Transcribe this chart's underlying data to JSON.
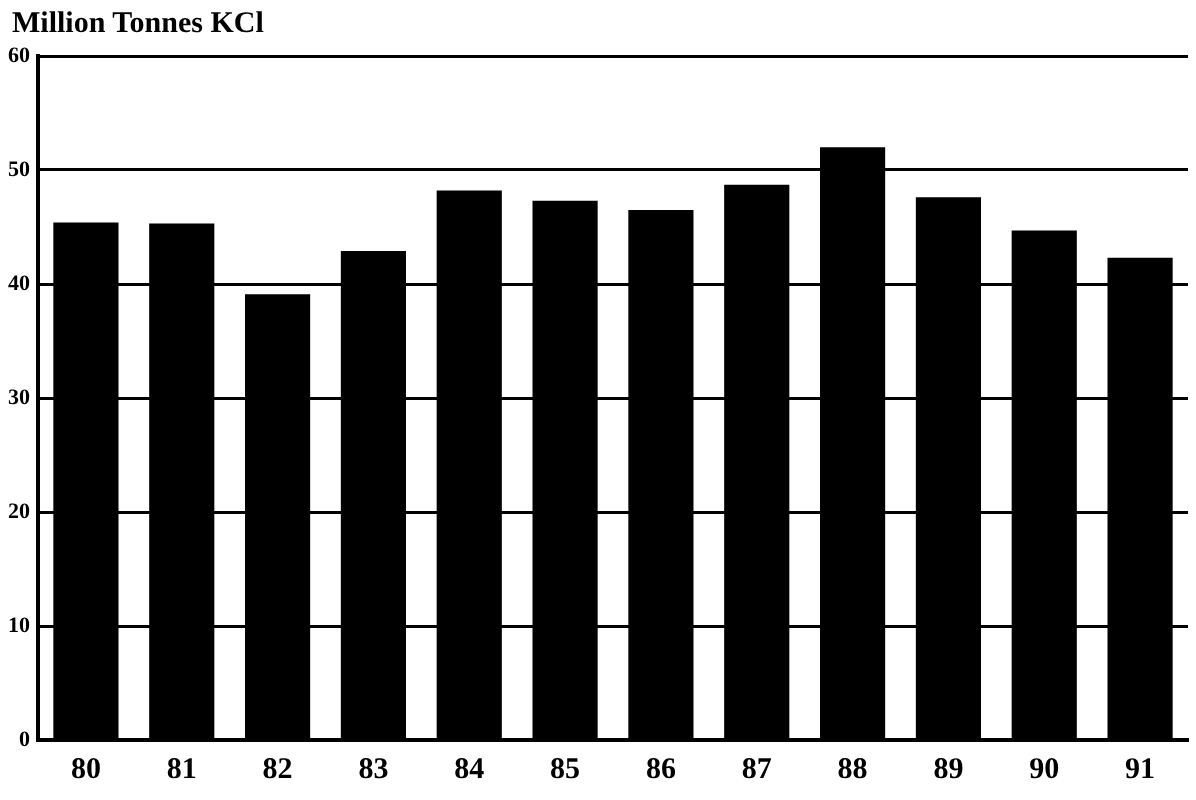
{
  "chart_data": {
    "type": "bar",
    "title": "Million Tonnes KCl",
    "categories": [
      "80",
      "81",
      "82",
      "83",
      "84",
      "85",
      "86",
      "87",
      "88",
      "89",
      "90",
      "91"
    ],
    "values": [
      45.4,
      45.3,
      39.1,
      42.9,
      48.2,
      47.3,
      46.5,
      48.7,
      52.0,
      47.6,
      44.7,
      42.3
    ],
    "color": "#000000",
    "ylim": [
      0,
      60
    ],
    "yticks": [
      0,
      10,
      20,
      30,
      40,
      50,
      60
    ],
    "grid": "y"
  }
}
